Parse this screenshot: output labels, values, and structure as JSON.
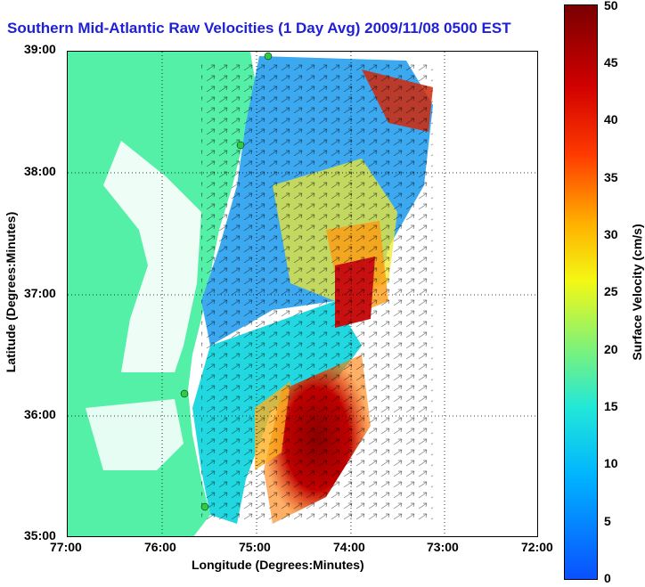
{
  "title": "Southern Mid-Atlantic Raw Velocities (1 Day Avg) 2009/11/08 0500 EST",
  "axes": {
    "xlabel": "Longitude (Degrees:Minutes)",
    "ylabel": "Latitude (Degrees:Minutes)",
    "x_ticks": [
      "77:00",
      "76:00",
      "75:00",
      "74:00",
      "73:00",
      "72:00"
    ],
    "y_ticks": [
      "39:00",
      "38:00",
      "37:00",
      "36:00",
      "35:00"
    ]
  },
  "colorbar": {
    "label": "Surface Velocity (cm/s)",
    "ticks": [
      "0",
      "5",
      "10",
      "15",
      "20",
      "25",
      "30",
      "35",
      "40",
      "45",
      "50"
    ],
    "range": [
      0,
      50
    ]
  },
  "map": {
    "lon_range": [
      -77.0,
      -72.0
    ],
    "lat_range": [
      35.0,
      39.0
    ],
    "land_color": "#55f0a8",
    "water_color": "#ffffff",
    "grid": "dotted"
  }
}
